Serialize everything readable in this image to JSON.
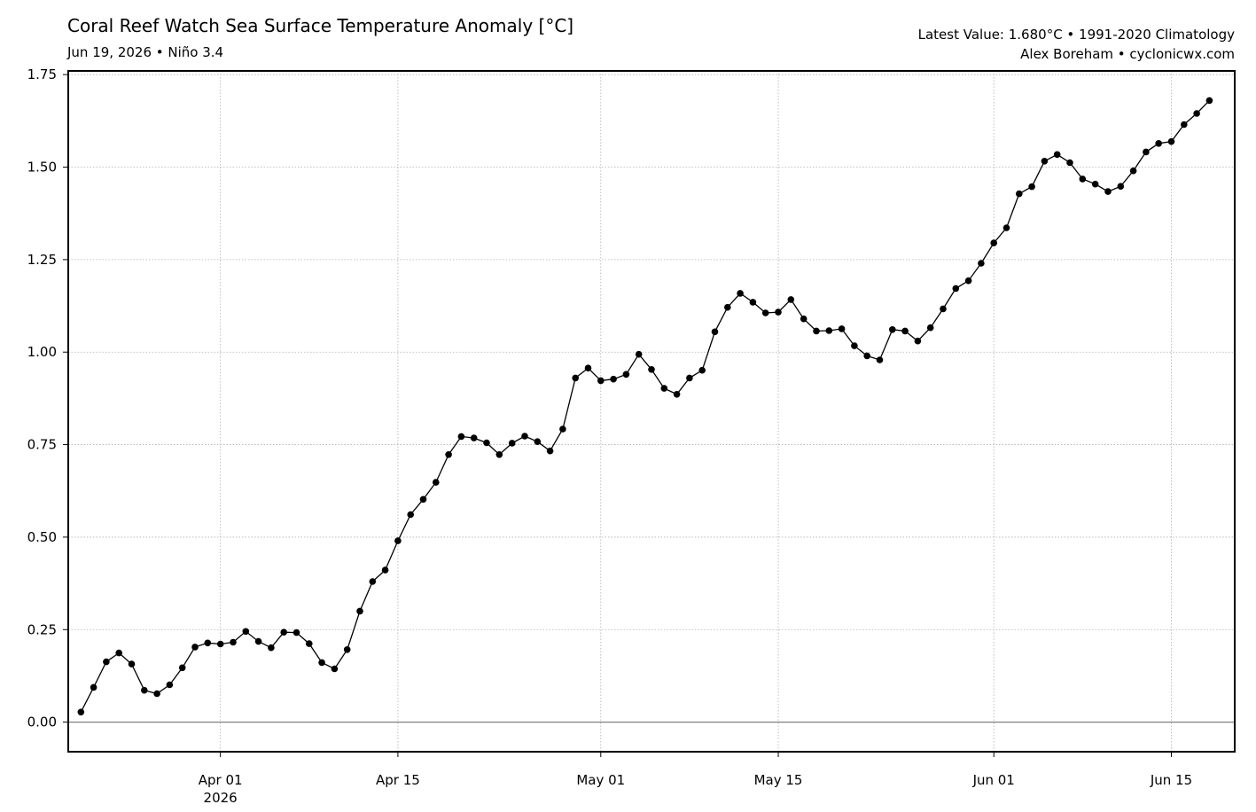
{
  "header": {
    "title": "Coral Reef Watch Sea Surface Temperature Anomaly [°C]",
    "subtitle": "Jun 19, 2026 • Niño 3.4",
    "info_line1": "Latest Value: 1.680°C • 1991-2020 Climatology",
    "info_line2": "Alex Boreham • cyclonicwx.com"
  },
  "chart_data": {
    "type": "line",
    "title": "Coral Reef Watch Sea Surface Temperature Anomaly [°C]",
    "subtitle": "Jun 19, 2026 • Niño 3.4",
    "xlabel": "",
    "ylabel": "",
    "x_start": "2026-03-21",
    "xlim": [
      "2026-03-20",
      "2026-06-20"
    ],
    "ylim": [
      -0.08,
      1.76
    ],
    "yticks": [
      0.0,
      0.25,
      0.5,
      0.75,
      1.0,
      1.25,
      1.5,
      1.75
    ],
    "ytick_labels": [
      "0.00",
      "0.25",
      "0.50",
      "0.75",
      "1.00",
      "1.25",
      "1.50",
      "1.75"
    ],
    "xticks": [
      {
        "date": "2026-04-01",
        "label": "Apr 01",
        "sublabel": "2026"
      },
      {
        "date": "2026-04-15",
        "label": "Apr 15",
        "sublabel": ""
      },
      {
        "date": "2026-05-01",
        "label": "May 01",
        "sublabel": ""
      },
      {
        "date": "2026-05-15",
        "label": "May 15",
        "sublabel": ""
      },
      {
        "date": "2026-06-01",
        "label": "Jun 01",
        "sublabel": ""
      },
      {
        "date": "2026-06-15",
        "label": "Jun 15",
        "sublabel": ""
      }
    ],
    "grid": true,
    "zero_line": true,
    "series": [
      {
        "color": "#000000",
        "values": [
          0.027,
          0.094,
          0.163,
          0.187,
          0.157,
          0.086,
          0.077,
          0.101,
          0.147,
          0.203,
          0.214,
          0.211,
          0.216,
          0.245,
          0.218,
          0.201,
          0.243,
          0.242,
          0.212,
          0.161,
          0.144,
          0.196,
          0.3,
          0.38,
          0.411,
          0.49,
          0.561,
          0.602,
          0.648,
          0.723,
          0.772,
          0.768,
          0.755,
          0.723,
          0.754,
          0.773,
          0.758,
          0.733,
          0.792,
          0.93,
          0.957,
          0.923,
          0.927,
          0.94,
          0.994,
          0.953,
          0.902,
          0.886,
          0.93,
          0.951,
          1.055,
          1.121,
          1.159,
          1.135,
          1.106,
          1.108,
          1.142,
          1.09,
          1.057,
          1.058,
          1.063,
          1.017,
          0.99,
          0.979,
          1.061,
          1.057,
          1.03,
          1.066,
          1.117,
          1.172,
          1.193,
          1.24,
          1.295,
          1.336,
          1.428,
          1.447,
          1.516,
          1.534,
          1.512,
          1.468,
          1.454,
          1.434,
          1.448,
          1.49,
          1.541,
          1.564,
          1.569,
          1.615,
          1.645,
          1.68
        ]
      }
    ]
  }
}
